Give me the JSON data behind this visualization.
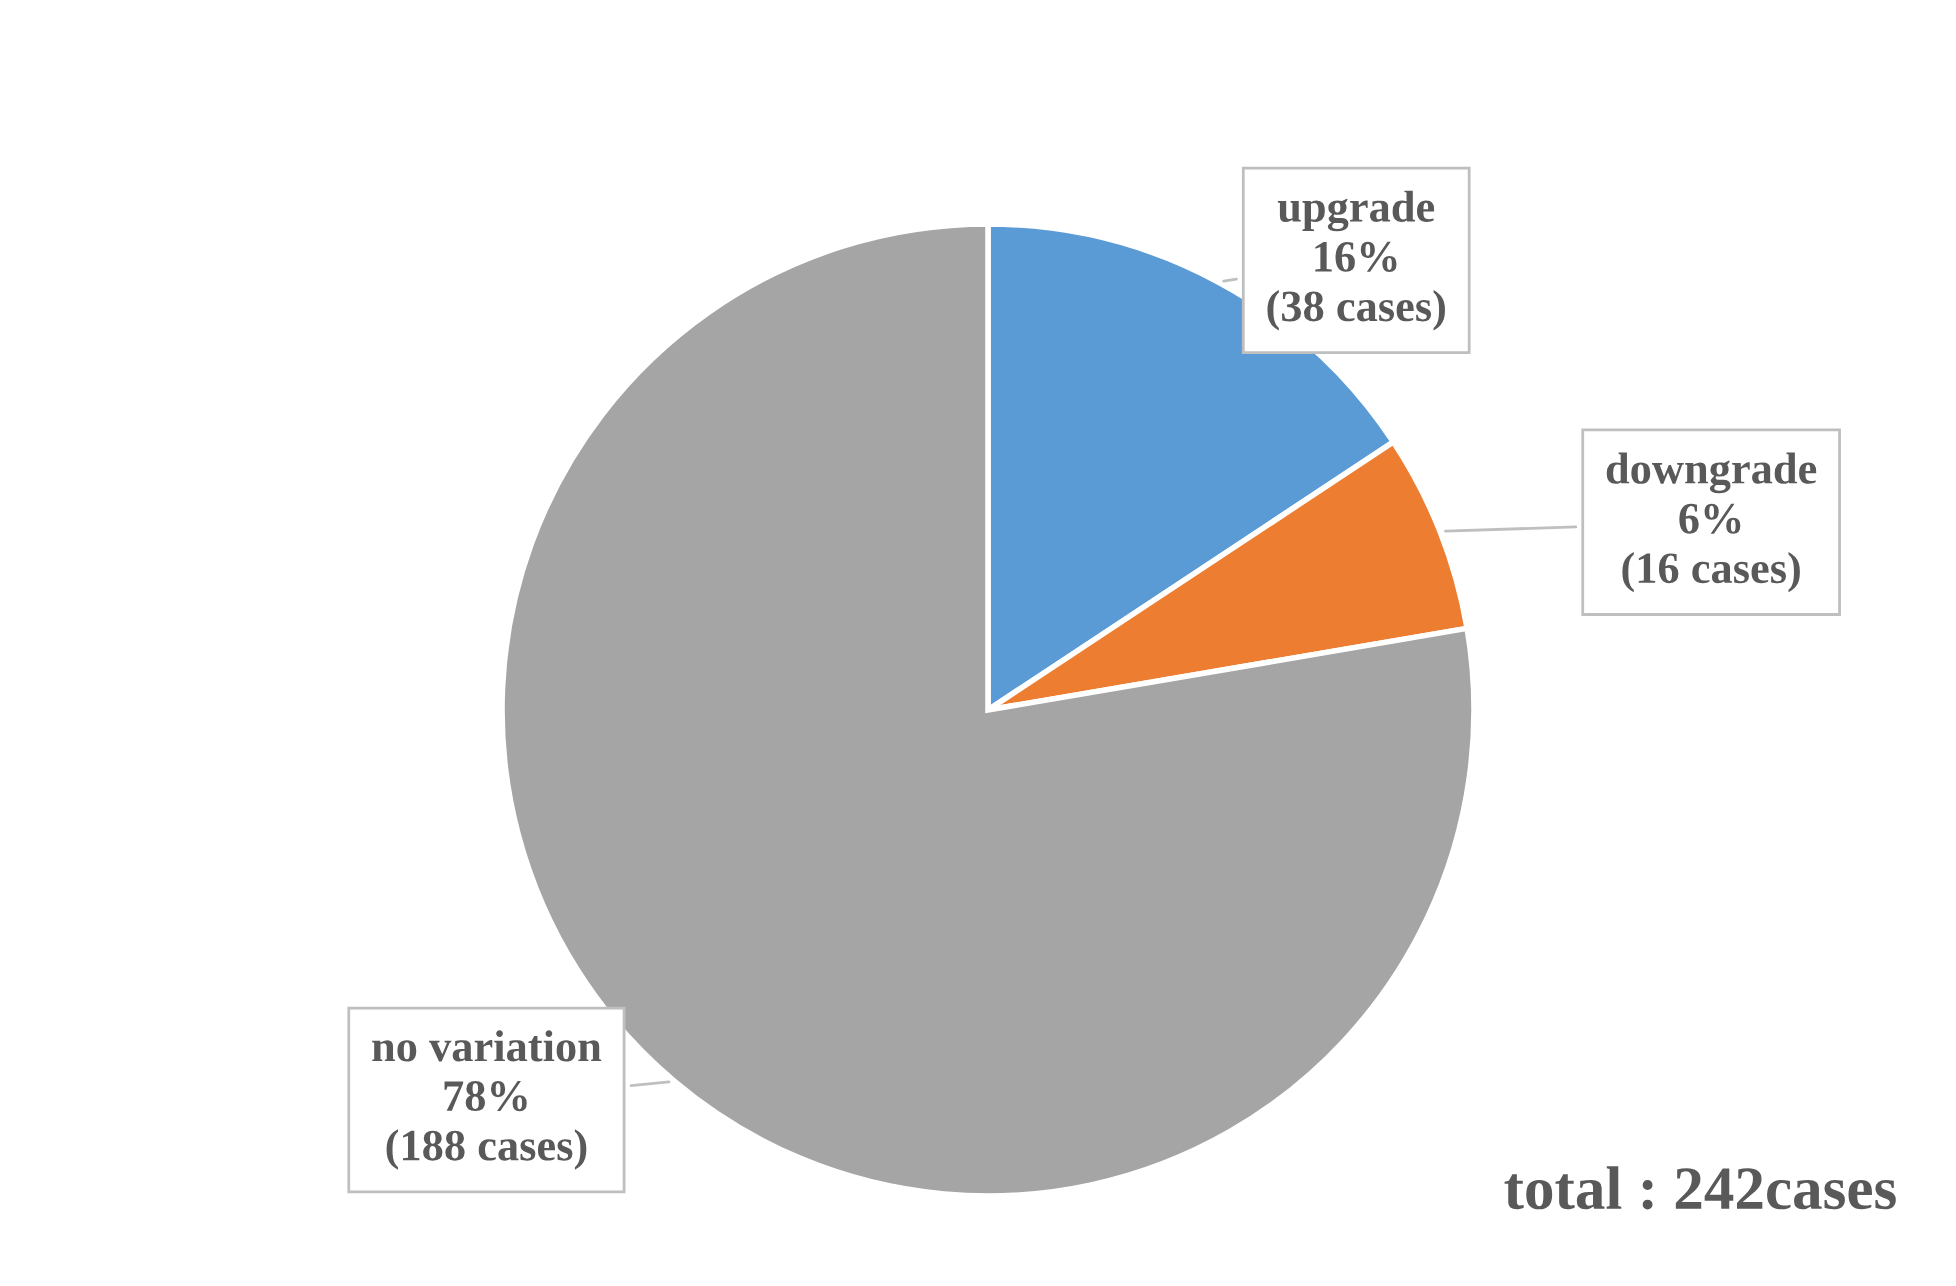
{
  "chart_data": {
    "type": "pie",
    "categories": [
      "upgrade",
      "downgrade",
      "no variation"
    ],
    "values": [
      38,
      16,
      188
    ],
    "colors": [
      "#5b9bd5",
      "#ed7d31",
      "#a5a5a5"
    ],
    "value_labels": [
      "16%\n(38 cases)",
      "6%\n(16 cases)",
      "78%\n(188 cases)"
    ],
    "annotations": [
      "total : 242cases"
    ],
    "legend": false
  }
}
